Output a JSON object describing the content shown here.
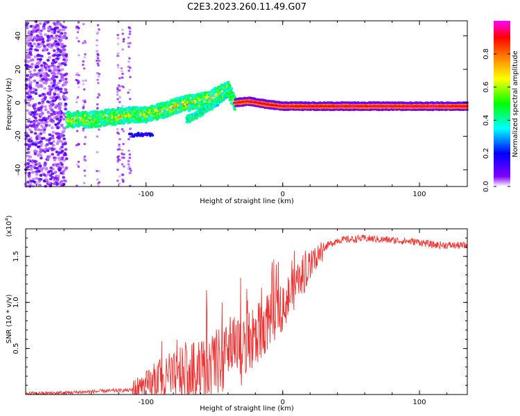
{
  "title": "C2E3.2023.260.11.49.G07",
  "chart_data": [
    {
      "type": "heatmap",
      "xlabel": "Height of straight line (km)",
      "ylabel": "Frequency (Hz)",
      "xlim": [
        -188,
        135
      ],
      "ylim": [
        -50,
        49
      ],
      "xticks": [
        -100,
        0,
        100
      ],
      "yticks": [
        -40,
        -20,
        0,
        20,
        40
      ],
      "colorbar": {
        "label": "Normalized spectral amplitude",
        "range": [
          0,
          1
        ],
        "ticks": [
          "0.0",
          "0.2",
          "0.4",
          "0.6",
          "0.8"
        ],
        "colors": [
          "#ffffff",
          "#8000ff",
          "#0000ff",
          "#00ffff",
          "#00ff00",
          "#ffff00",
          "#ff8000",
          "#ff0000",
          "#ff00ff"
        ]
      },
      "ridge": {
        "x": [
          -158,
          -140,
          -120,
          -100,
          -85,
          -75,
          -60,
          -50,
          -40,
          -35,
          -25,
          -10,
          0,
          20,
          60,
          100,
          135
        ],
        "frequency": [
          -10,
          -10,
          -8,
          -7,
          -4,
          -1,
          1,
          4,
          8,
          0,
          1,
          -1,
          -2,
          -2,
          -2,
          -2,
          -2
        ]
      },
      "branch": {
        "x": [
          -70,
          -60,
          -50,
          -40
        ],
        "frequency": [
          -10,
          -6,
          -1,
          6
        ]
      }
    },
    {
      "type": "line",
      "xlabel": "Height of straight line (km)",
      "ylabel": "SNR (10 * v/v)",
      "yscale_note": "(x10",
      "yscale_exp": "4",
      "yscale_close": ")",
      "xlim": [
        -188,
        135
      ],
      "ylim": [
        0,
        1.8
      ],
      "xticks": [
        -100,
        0,
        100
      ],
      "yticks": [
        0.5,
        1.0,
        1.5
      ],
      "ytick_labels": [
        "0.5",
        "1.0",
        "1.5"
      ],
      "color": "#ee3333",
      "envelope": {
        "x": [
          -188,
          -160,
          -130,
          -110,
          -100,
          -80,
          -60,
          -45,
          -30,
          -20,
          -10,
          0,
          10,
          20,
          30,
          40,
          60,
          80,
          100,
          110,
          135
        ],
        "snr": [
          0.01,
          0.02,
          0.04,
          0.05,
          0.1,
          0.2,
          0.3,
          0.4,
          0.5,
          0.65,
          0.85,
          1.0,
          1.2,
          1.4,
          1.6,
          1.68,
          1.7,
          1.68,
          1.66,
          1.63,
          1.62
        ]
      }
    }
  ]
}
